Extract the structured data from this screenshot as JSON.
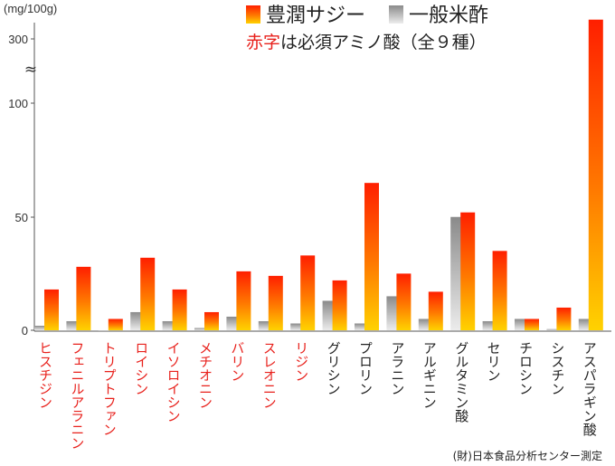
{
  "chart_data": {
    "type": "bar",
    "unit_label": "(mg/100g)",
    "y_ticks": [
      "0",
      "50",
      "100",
      "300"
    ],
    "axis_break": "≈",
    "y_scale": "broken axis: 0-100 linear, break, 300 near top",
    "series": [
      {
        "name": "豊潤サジー",
        "color": "#ff2a00",
        "color_bottom": "#ffcc00"
      },
      {
        "name": "一般米酢",
        "color": "#888888",
        "color_bottom": "#f0f0f0"
      }
    ],
    "essential_color": "#e8211c",
    "categories": [
      {
        "label": "ヒスチジン",
        "essential": true,
        "sea": 18,
        "vinegar": 2
      },
      {
        "label": "フェニルアラニン",
        "essential": true,
        "sea": 28,
        "vinegar": 4
      },
      {
        "label": "トリプトファン",
        "essential": true,
        "sea": 5,
        "vinegar": 0
      },
      {
        "label": "ロイシン",
        "essential": true,
        "sea": 32,
        "vinegar": 8
      },
      {
        "label": "イソロイシン",
        "essential": true,
        "sea": 18,
        "vinegar": 4
      },
      {
        "label": "メチオニン",
        "essential": true,
        "sea": 8,
        "vinegar": 1
      },
      {
        "label": "バリン",
        "essential": true,
        "sea": 26,
        "vinegar": 6
      },
      {
        "label": "スレオニン",
        "essential": true,
        "sea": 24,
        "vinegar": 4
      },
      {
        "label": "リジン",
        "essential": true,
        "sea": 33,
        "vinegar": 3
      },
      {
        "label": "グリシン",
        "essential": false,
        "sea": 22,
        "vinegar": 13
      },
      {
        "label": "プロリン",
        "essential": false,
        "sea": 65,
        "vinegar": 3
      },
      {
        "label": "アラニン",
        "essential": false,
        "sea": 25,
        "vinegar": 15
      },
      {
        "label": "アルギニン",
        "essential": false,
        "sea": 17,
        "vinegar": 5
      },
      {
        "label": "グルタミン酸",
        "essential": false,
        "sea": 52,
        "vinegar": 50
      },
      {
        "label": "セリン",
        "essential": false,
        "sea": 35,
        "vinegar": 4
      },
      {
        "label": "チロシン",
        "essential": false,
        "sea": 5,
        "vinegar": 5
      },
      {
        "label": "シスチン",
        "essential": false,
        "sea": 10,
        "vinegar": 0.5
      },
      {
        "label": "アスパラギン酸",
        "essential": false,
        "sea": 360,
        "vinegar": 5
      }
    ]
  },
  "legend": {
    "sea_label": "豊潤サジー",
    "vinegar_label": "一般米酢"
  },
  "note": {
    "red_part": "赤字",
    "rest": "は必須アミノ酸（全９種）"
  },
  "source": "(財)日本食品分析センター測定"
}
